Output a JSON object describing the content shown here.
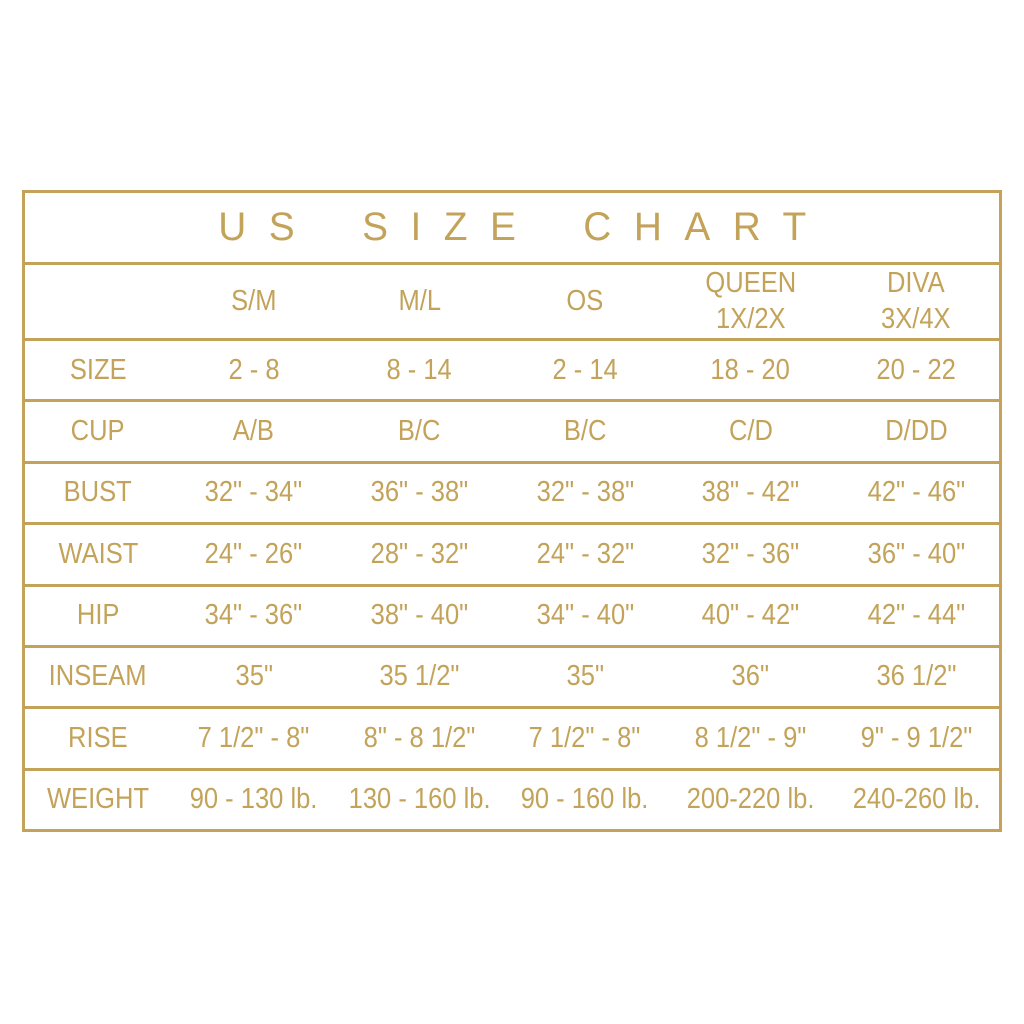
{
  "colors": {
    "gold": "#c3a35a",
    "background": "#ffffff"
  },
  "chart_data": {
    "type": "table",
    "title": "US SIZE CHART",
    "columns": [
      {
        "line1": "S/M",
        "line2": ""
      },
      {
        "line1": "M/L",
        "line2": ""
      },
      {
        "line1": "OS",
        "line2": ""
      },
      {
        "line1": "QUEEN",
        "line2": "1X/2X"
      },
      {
        "line1": "DIVA",
        "line2": "3X/4X"
      }
    ],
    "rows": [
      {
        "label": "SIZE",
        "values": [
          "2 - 8",
          "8 - 14",
          "2 - 14",
          "18 - 20",
          "20 - 22"
        ]
      },
      {
        "label": "CUP",
        "values": [
          "A/B",
          "B/C",
          "B/C",
          "C/D",
          "D/DD"
        ]
      },
      {
        "label": "BUST",
        "values": [
          "32\" - 34\"",
          "36\" - 38\"",
          "32\" - 38\"",
          "38\" - 42\"",
          "42\" - 46\""
        ]
      },
      {
        "label": "WAIST",
        "values": [
          "24\" - 26\"",
          "28\" - 32\"",
          "24\" - 32\"",
          "32\" - 36\"",
          "36\" - 40\""
        ]
      },
      {
        "label": "HIP",
        "values": [
          "34\" - 36\"",
          "38\" - 40\"",
          "34\" - 40\"",
          "40\" - 42\"",
          "42\" - 44\""
        ]
      },
      {
        "label": "INSEAM",
        "values": [
          "35\"",
          "35 1/2\"",
          "35\"",
          "36\"",
          "36 1/2\""
        ]
      },
      {
        "label": "RISE",
        "values": [
          "7 1/2\" - 8\"",
          "8\" - 8 1/2\"",
          "7 1/2\" - 8\"",
          "8 1/2\" - 9\"",
          "9\" - 9 1/2\""
        ]
      },
      {
        "label": "WEIGHT",
        "values": [
          "90 - 130 lb.",
          "130 - 160 lb.",
          "90 - 160 lb.",
          "200-220 lb.",
          "240-260 lb."
        ]
      }
    ]
  }
}
